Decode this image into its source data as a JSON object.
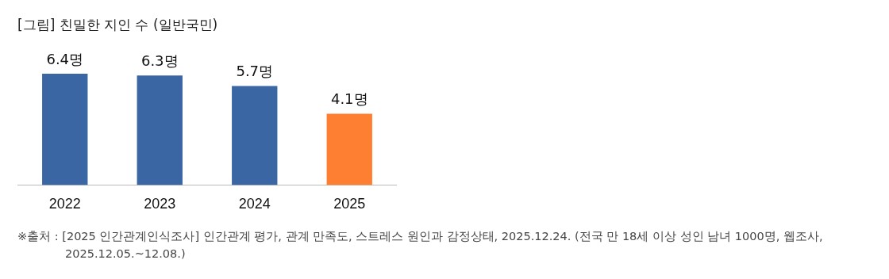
{
  "chart_data": {
    "type": "bar",
    "title": "[그림] 친밀한 지인 수 (일반국민)",
    "categories": [
      "2022",
      "2023",
      "2024",
      "2025"
    ],
    "values": [
      6.4,
      6.3,
      5.7,
      4.1
    ],
    "colors": [
      "#3a66a4",
      "#3a66a4",
      "#3a66a4",
      "#ff7f32"
    ],
    "value_labels": [
      "6.4명",
      "6.3명",
      "5.7명",
      "4.1명"
    ],
    "grid": false,
    "legend": false,
    "tick_labels": "x",
    "annotations": [
      "※출처 : [2025 인간관계인식조사] 인간관계 평가, 관계 만족도, 스트레스 원인과 감정상태, 2025.12.24. (전국 만 18세 이상 성인 남녀 1000명, 웹조사, 2025.12.05.~12.08.)"
    ]
  }
}
